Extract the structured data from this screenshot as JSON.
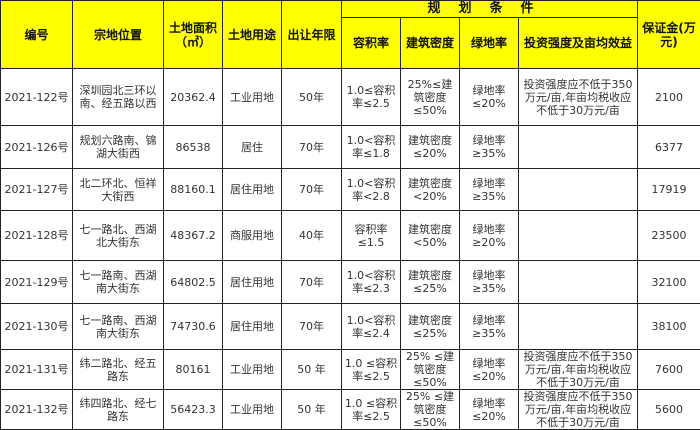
{
  "header": {
    "id": "编号",
    "location": "宗地位置",
    "area": "土地面积（㎡）",
    "use": "土地用途",
    "term": "出让年限",
    "planning": "规划条件",
    "far": "容积率",
    "density": "建筑密度",
    "green": "绿地率",
    "invest": "投资强度及亩均效益",
    "deposit": "保证金(万元)"
  },
  "rows": [
    {
      "id": "2021-122号",
      "location": "深圳园北三环以南、经五路以西",
      "area": "20362.4",
      "use": "工业用地",
      "term": "50年",
      "far": "1.0≤容积率≤2.5",
      "density": "25%≤建筑密度≤50%",
      "green": "绿地率≤20%",
      "invest": "投资强度应不低于350万元/亩,年亩均税收应不低于30万元/亩",
      "deposit": "2100"
    },
    {
      "id": "2021-126号",
      "location": "规划六路南、锦湖大街西",
      "area": "86538",
      "use": "居住",
      "term": "70年",
      "far": "1.0<容积率≤1.8",
      "density": "建筑密度≤20%",
      "green": "绿地率≥35%",
      "invest": "",
      "deposit": "6377"
    },
    {
      "id": "2021-127号",
      "location": "北二环北、恒祥大街西",
      "area": "88160.1",
      "use": "居住用地",
      "term": "70年",
      "far": "1.0<容积率<2.8",
      "density": "建筑密度<20%",
      "green": "绿地率≥35%",
      "invest": "",
      "deposit": "17919"
    },
    {
      "id": "2021-128号",
      "location": "七一路北、西湖北大街东",
      "area": "48367.2",
      "use": "商服用地",
      "term": "40年",
      "far": "容积率≤1.5",
      "density": "建筑密度<50%",
      "green": "绿地率≥20%",
      "invest": "",
      "deposit": "23500"
    },
    {
      "id": "2021-129号",
      "location": "七一路南、西湖南大街东",
      "area": "64802.5",
      "use": "居住用地",
      "term": "70年",
      "far": "1.0<容积率≤2.3",
      "density": "建筑密度≤25%",
      "green": "绿地率≥35%",
      "invest": "",
      "deposit": "32100"
    },
    {
      "id": "2021-130号",
      "location": "七一路南、西湖南大街东",
      "area": "74730.6",
      "use": "居住用地",
      "term": "70年",
      "far": "1.0<容积率≤2.4",
      "density": "建筑密度≤25%",
      "green": "绿地率≥35%",
      "invest": "",
      "deposit": "38100"
    },
    {
      "id": "2021-131号",
      "location": "纬二路北、经五路东",
      "area": "80161",
      "use": "工业用地",
      "term": "50 年",
      "far": "1.0 ≤容积率≤2.5",
      "density": "25% ≤建筑密度≤50%",
      "green": "绿地率≤20%",
      "invest": "投资强度应不低于350万元/亩,年亩均税收应不低于30万元/亩",
      "deposit": "7600"
    },
    {
      "id": "2021-132号",
      "location": "纬四路北、经七路东",
      "area": "56423.3",
      "use": "工业用地",
      "term": "50 年",
      "far": "1.0 ≤容积率≤2.5",
      "density": "25% ≤建筑密度≤50%",
      "green": "绿地率≤20%",
      "invest": "投资强度应不低于350万元/亩,年亩均税收应不低于30万元/亩",
      "deposit": "5600"
    }
  ]
}
